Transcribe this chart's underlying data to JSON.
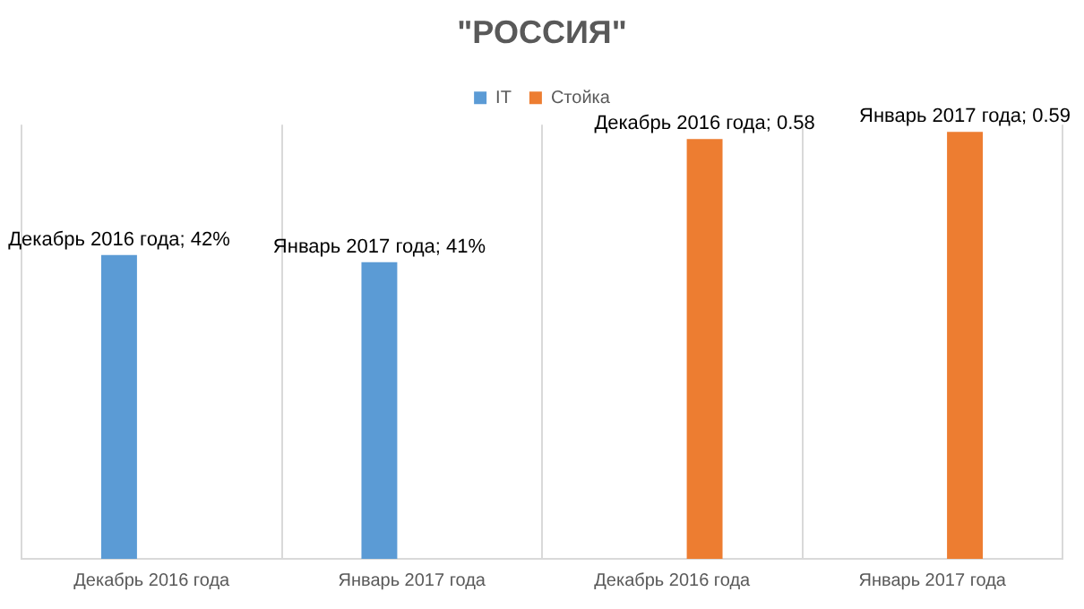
{
  "chart_data": {
    "type": "bar",
    "title": "\"РОССИЯ\"",
    "categories": [
      "Декабрь 2016 года",
      "Январь 2017 года",
      "Декабрь 2016 года",
      "Январь 2017 года"
    ],
    "series": [
      {
        "name": "IT",
        "color": "#5b9bd5",
        "values": [
          0.42,
          0.41,
          null,
          null
        ],
        "value_labels": [
          "Декабрь 2016 года; 42%",
          "Январь 2017 года; 41%",
          null,
          null
        ]
      },
      {
        "name": "Стойка",
        "color": "#ed7d31",
        "values": [
          null,
          null,
          0.58,
          0.59
        ],
        "value_labels": [
          null,
          null,
          "Декабрь 2016 года; 0.58",
          "Январь 2017 года; 0.59"
        ]
      }
    ],
    "grid": "x",
    "legend": "top",
    "tick_labels": "x"
  }
}
